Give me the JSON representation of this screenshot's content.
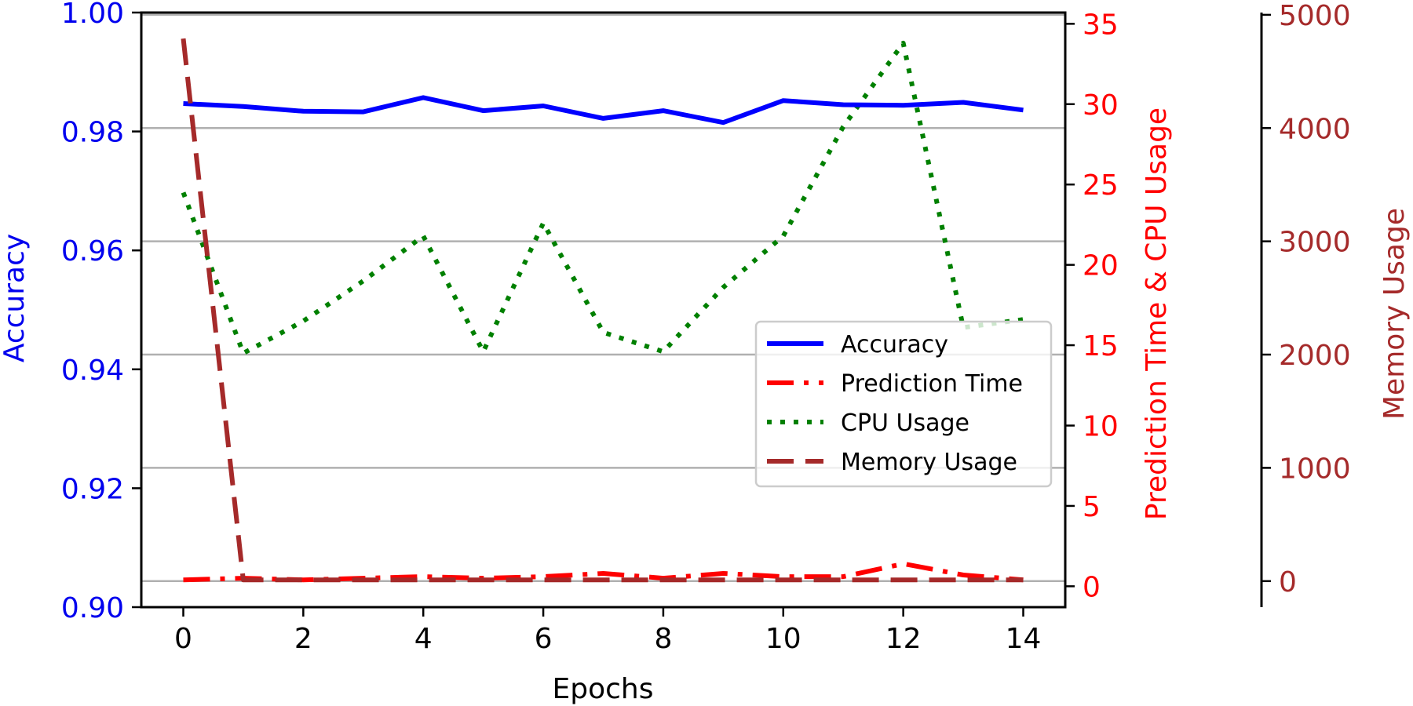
{
  "chart_data": {
    "type": "line",
    "xlabel": "Epochs",
    "x": [
      0,
      1,
      2,
      3,
      4,
      5,
      6,
      7,
      8,
      9,
      10,
      11,
      12,
      13,
      14
    ],
    "x_ticks": [
      0,
      2,
      4,
      6,
      8,
      10,
      12,
      14
    ],
    "xlim": [
      -0.7,
      14.7
    ],
    "grid": "horizontal",
    "legend_position": "center-right",
    "axes": {
      "accuracy": {
        "label": "Accuracy",
        "color": "#0000ee",
        "ylim": [
          0.9,
          1.0
        ],
        "ticks": [
          "0.90",
          "0.92",
          "0.94",
          "0.96",
          "0.98",
          "1.00"
        ]
      },
      "time_cpu": {
        "label": "Prediction Time & CPU Usage",
        "color": "#ff0000",
        "ylim": [
          -1.3,
          35.7
        ],
        "ticks": [
          "0",
          "5",
          "10",
          "15",
          "20",
          "25",
          "30",
          "35"
        ]
      },
      "memory": {
        "label": "Memory Usage",
        "color": "#a52a2a",
        "ylim": [
          -230,
          5020
        ],
        "ticks": [
          "0",
          "1000",
          "2000",
          "3000",
          "4000",
          "5000"
        ]
      }
    },
    "series": [
      {
        "name": "Accuracy",
        "axis": "accuracy",
        "color": "#0000ff",
        "dash": "solid",
        "values": [
          0.9847,
          0.9842,
          0.9834,
          0.9833,
          0.9857,
          0.9835,
          0.9843,
          0.9822,
          0.9835,
          0.9815,
          0.9852,
          0.9845,
          0.9844,
          0.9849,
          0.9836
        ]
      },
      {
        "name": "Prediction Time",
        "axis": "time_cpu",
        "color": "#ff0000",
        "dash": "dashdot",
        "values": [
          0.4,
          0.5,
          0.4,
          0.5,
          0.6,
          0.5,
          0.6,
          0.8,
          0.5,
          0.8,
          0.6,
          0.6,
          1.4,
          0.7,
          0.4
        ]
      },
      {
        "name": "CPU Usage",
        "axis": "time_cpu",
        "color": "#008000",
        "dash": "dotted",
        "values": [
          24.5,
          14.5,
          16.5,
          19.0,
          21.8,
          14.6,
          22.6,
          15.8,
          14.6,
          18.6,
          21.8,
          28.6,
          33.8,
          16.1,
          16.6
        ]
      },
      {
        "name": "Memory Usage",
        "axis": "memory",
        "color": "#a52a2a",
        "dash": "dashed",
        "values": [
          4790,
          10,
          10,
          10,
          10,
          10,
          10,
          10,
          10,
          10,
          10,
          10,
          10,
          10,
          10
        ]
      }
    ]
  }
}
